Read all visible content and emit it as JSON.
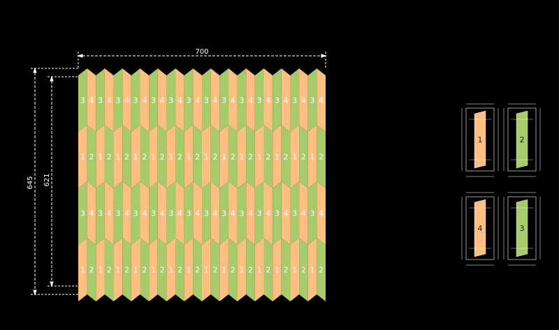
{
  "dimensions": {
    "width": "700",
    "overall_height": "645",
    "inner_height": "621"
  },
  "pattern": {
    "columns": 28,
    "bands": 4,
    "band_labels": [
      [
        "3",
        "4"
      ],
      [
        "1",
        "2"
      ],
      [
        "3",
        "4"
      ],
      [
        "1",
        "2"
      ]
    ]
  },
  "colors": {
    "orange": "#FFBE82",
    "green": "#A7CB6B",
    "background": "#000000",
    "dimension_line": "#ffffff"
  },
  "pieces": [
    {
      "label": "1",
      "color": "orange"
    },
    {
      "label": "2",
      "color": "green"
    },
    {
      "label": "4",
      "color": "orange"
    },
    {
      "label": "3",
      "color": "green"
    }
  ]
}
